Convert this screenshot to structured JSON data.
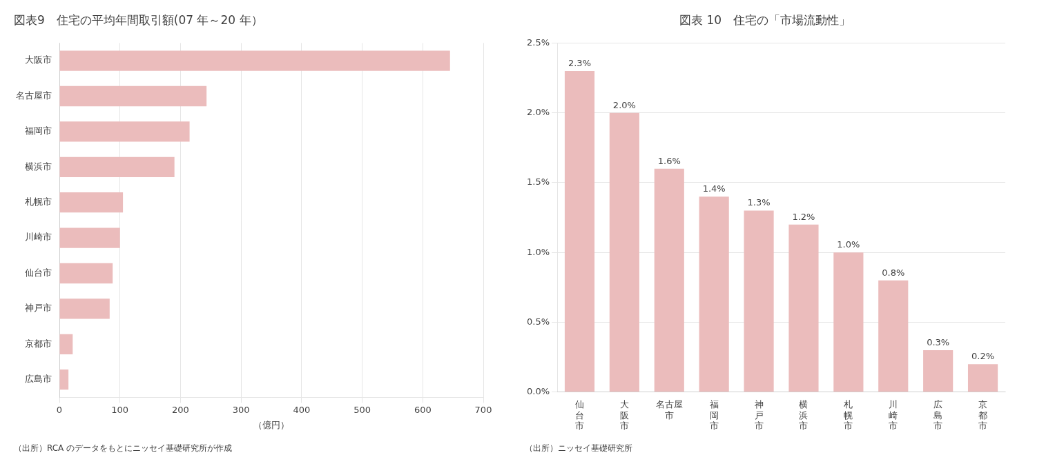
{
  "chart_data": [
    {
      "type": "bar",
      "orientation": "horizontal",
      "title": "図表9　住宅の平均年間取引額(07 年～20 年）",
      "xlabel": "（億円）",
      "annotations": [
        "（出所）RCA のデータをもとにニッセイ基礎研究所が作成"
      ],
      "categories": [
        "大阪市",
        "名古屋市",
        "福岡市",
        "横浜市",
        "札幌市",
        "川崎市",
        "仙台市",
        "神戸市",
        "京都市",
        "広島市"
      ],
      "values": [
        645,
        243,
        215,
        190,
        105,
        100,
        88,
        83,
        22,
        15
      ],
      "color": "#ebbcbc",
      "xlim": [
        0,
        700
      ],
      "xticks": [
        0,
        100,
        200,
        300,
        400,
        500,
        600,
        700
      ],
      "grid": true
    },
    {
      "type": "bar",
      "title": "図表 10　住宅の「市場流動性」",
      "annotations": [
        "（出所）ニッセイ基礎研究所"
      ],
      "categories": [
        "仙\n台\n市",
        "大\n阪\n市",
        "名古屋\n市",
        "福\n岡\n市",
        "神\n戸\n市",
        "横\n浜\n市",
        "札\n幌\n市",
        "川\n崎\n市",
        "広\n島\n市",
        "京\n都\n市"
      ],
      "values": [
        2.3,
        2.0,
        1.6,
        1.4,
        1.3,
        1.2,
        1.0,
        0.8,
        0.3,
        0.2
      ],
      "value_labels": [
        "2.3%",
        "2.0%",
        "1.6%",
        "1.4%",
        "1.3%",
        "1.2%",
        "1.0%",
        "0.8%",
        "0.3%",
        "0.2%"
      ],
      "data_labels": true,
      "color": "#ebbcbc",
      "ylim": [
        0,
        2.5
      ],
      "yticks": [
        {
          "value": 0.0,
          "label": "0.0%"
        },
        {
          "value": 0.5,
          "label": "0.5%"
        },
        {
          "value": 1.0,
          "label": "1.0%"
        },
        {
          "value": 1.5,
          "label": "1.5%"
        },
        {
          "value": 2.0,
          "label": "2.0%"
        },
        {
          "value": 2.5,
          "label": "2.5%"
        }
      ],
      "grid": true
    }
  ]
}
